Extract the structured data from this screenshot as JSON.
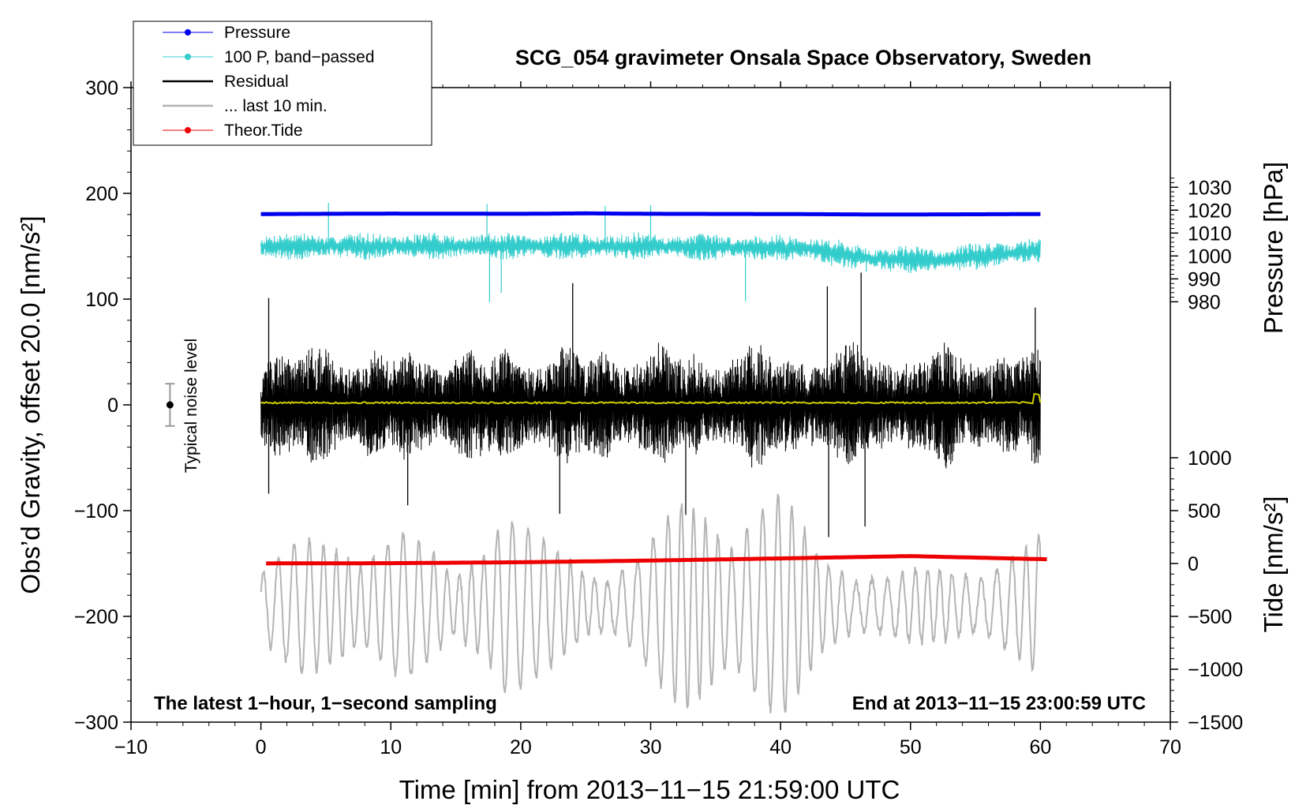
{
  "chart_data": {
    "type": "line",
    "title": "SCG_054 gravimeter Onsala Space Observatory, Sweden",
    "xlabel": "Time [min] from 2013−11−15 21:59:00 UTC",
    "ylabel": "Obs’d Gravity, offset 20.0 [nm/s²]",
    "ylabel_right_pressure": "Pressure [hPa]",
    "ylabel_right_tide": "Tide [nm/s²]",
    "xlim": [
      -10,
      70
    ],
    "ylim": [
      -300,
      300
    ],
    "x_ticks": [
      -10,
      0,
      10,
      20,
      30,
      40,
      50,
      60,
      70
    ],
    "x_tick_labels": [
      "−10",
      "0",
      "10",
      "20",
      "30",
      "40",
      "50",
      "60",
      "70"
    ],
    "y_ticks": [
      -300,
      -200,
      -100,
      0,
      100,
      200,
      300
    ],
    "y_tick_labels": [
      "−300",
      "−200",
      "−100",
      "0",
      "100",
      "200",
      "300"
    ],
    "pressure_axis": {
      "ticks": [
        980,
        990,
        1000,
        1010,
        1020,
        1030
      ],
      "tick_labels": [
        "980",
        "990",
        "1000",
        "1010",
        "1020",
        "1030"
      ],
      "gravity_per_hpa": 2.166,
      "gravity_at_1000": 140.8
    },
    "tide_axis": {
      "ticks": [
        -1500,
        -1000,
        -500,
        0,
        500,
        1000
      ],
      "tick_labels": [
        "−1500",
        "−1000",
        "−500",
        "0",
        "500",
        "1000"
      ],
      "gravity_per_tide": 0.1,
      "gravity_at_0": -150
    },
    "series": [
      {
        "name": "Pressure",
        "color": "#0000ee",
        "style": "line-marker",
        "x_range": [
          0,
          60
        ],
        "points_hpa": [
          [
            0,
            1018.3
          ],
          [
            10,
            1018.5
          ],
          [
            20,
            1018.4
          ],
          [
            25,
            1018.6
          ],
          [
            30,
            1018.4
          ],
          [
            40,
            1018.3
          ],
          [
            48,
            1018.1
          ],
          [
            55,
            1018.2
          ],
          [
            60,
            1018.3
          ]
        ]
      },
      {
        "name": "100 P, band−passed",
        "color": "#33cccc",
        "style": "line-marker",
        "x_range": [
          0,
          60
        ],
        "baseline_nm_s2": [
          [
            0,
            150
          ],
          [
            15,
            150
          ],
          [
            30,
            150
          ],
          [
            42,
            148
          ],
          [
            47,
            138
          ],
          [
            52,
            137
          ],
          [
            60,
            146
          ]
        ],
        "amplitude_nm_s2": 11,
        "seed": 7,
        "spikes": [
          [
            5.2,
            191
          ],
          [
            17.6,
            97
          ],
          [
            17.4,
            190
          ],
          [
            18.5,
            106
          ],
          [
            26.5,
            188
          ],
          [
            37.3,
            98
          ],
          [
            30.0,
            189
          ],
          [
            46.6,
            126
          ]
        ]
      },
      {
        "name": "Residual",
        "color": "#000000",
        "style": "line",
        "x_range": [
          0,
          60
        ],
        "amplitude_nm_s2": 46,
        "seed": 13,
        "spikes": [
          [
            0.6,
            101
          ],
          [
            0.6,
            -84
          ],
          [
            11.3,
            -95
          ],
          [
            24.0,
            115
          ],
          [
            23.0,
            -103
          ],
          [
            32.7,
            -104
          ],
          [
            43.6,
            112
          ],
          [
            43.7,
            -125
          ],
          [
            46.2,
            125
          ],
          [
            46.5,
            -115
          ],
          [
            59.6,
            92
          ]
        ]
      },
      {
        "name": "... last 10 min.",
        "color": "#b4b4b4",
        "style": "line",
        "x_range": [
          0,
          60
        ],
        "envelope_peaks_nm_s2": [
          [
            0,
            38
          ],
          [
            3,
            62
          ],
          [
            7,
            65
          ],
          [
            11,
            72
          ],
          [
            15,
            30
          ],
          [
            18.5,
            110
          ],
          [
            21,
            70
          ],
          [
            25,
            35
          ],
          [
            29,
            50
          ],
          [
            32.5,
            100
          ],
          [
            36,
            95
          ],
          [
            40,
            110
          ],
          [
            43,
            50
          ],
          [
            48,
            30
          ],
          [
            55,
            40
          ],
          [
            59,
            55
          ],
          [
            60,
            70
          ]
        ],
        "center_nm_s2": -190,
        "seed": 21
      },
      {
        "name": "Theor.Tide",
        "color": "#ee0000",
        "style": "line-marker",
        "x_range": [
          0.4,
          60.5
        ],
        "points_nm_s2_tide": [
          [
            0.4,
            1
          ],
          [
            10,
            3
          ],
          [
            20,
            12
          ],
          [
            30,
            28
          ],
          [
            40,
            48
          ],
          [
            50,
            70
          ],
          [
            60.5,
            40
          ]
        ]
      }
    ],
    "noise_bar": {
      "label": "Typical noise level",
      "x": -7,
      "center": 0,
      "half_range": 20
    },
    "annotations": {
      "bottom_left": "The latest 1−hour, 1−second sampling",
      "bottom_right": "End at 2013−11−15 23:00:59 UTC"
    },
    "legend": {
      "position": "top-left",
      "entries": [
        {
          "label": "Pressure",
          "color": "#0000ee",
          "marker": true
        },
        {
          "label": "100 P, band−passed",
          "color": "#33cccc",
          "marker": true
        },
        {
          "label": "Residual",
          "color": "#000000",
          "marker": false
        },
        {
          "label": "... last 10 min.",
          "color": "#b4b4b4",
          "marker": false
        },
        {
          "label": "Theor.Tide",
          "color": "#ee0000",
          "marker": true
        }
      ]
    },
    "yellow_trace": {
      "color": "#cccc00",
      "level_nm_s2": 2
    }
  }
}
